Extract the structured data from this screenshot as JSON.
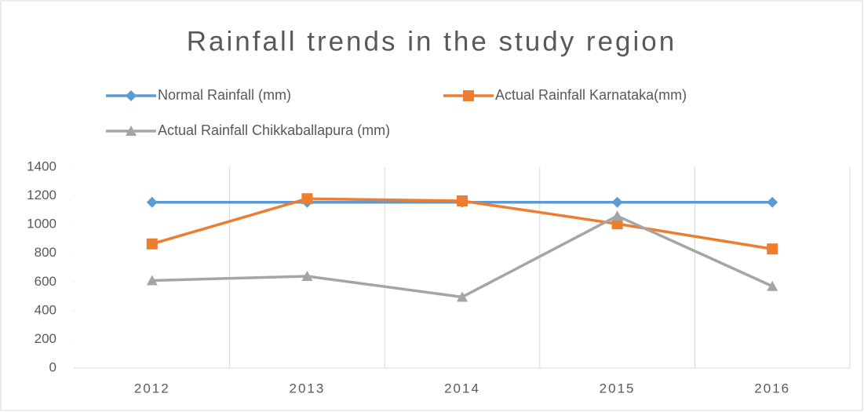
{
  "chart_data": {
    "type": "line",
    "title": "Rainfall trends in the study region",
    "categories": [
      "2012",
      "2013",
      "2014",
      "2015",
      "2016"
    ],
    "series": [
      {
        "name": "Normal Rainfall (mm)",
        "color": "#5b9bd5",
        "marker": "diamond",
        "values": [
          1155,
          1155,
          1155,
          1155,
          1155
        ]
      },
      {
        "name": "Actual Rainfall Karnataka(mm)",
        "color": "#ed7d31",
        "marker": "square",
        "values": [
          865,
          1180,
          1165,
          1005,
          830
        ]
      },
      {
        "name": "Actual Rainfall Chikkaballapura (mm)",
        "color": "#a5a5a5",
        "marker": "triangle",
        "values": [
          610,
          640,
          495,
          1060,
          570
        ]
      }
    ],
    "ylim": [
      0,
      1400
    ],
    "yticks": [
      0,
      200,
      400,
      600,
      800,
      1000,
      1200,
      1400
    ],
    "legend": "top"
  }
}
